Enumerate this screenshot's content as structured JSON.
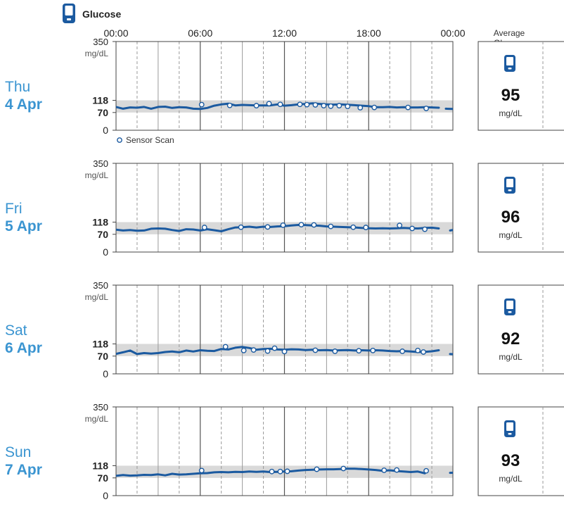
{
  "header": {
    "icon": "glucose-meter-icon",
    "title": "Glucose"
  },
  "colors": {
    "trace": "#1b5aa0",
    "target_band": "#d9d9d9",
    "day_label": "#3b95d1",
    "grid_solid": "#555555",
    "grid_dashed": "#999999",
    "icon": "#1b5aa0"
  },
  "time_axis": [
    "00:00",
    "06:00",
    "12:00",
    "18:00",
    "00:00"
  ],
  "legend": {
    "marker": "Sensor Scan"
  },
  "summary_header": [
    "Average",
    "Glucose"
  ],
  "chart_data": {
    "type": "line",
    "title": "Glucose",
    "unit": "mg/dL",
    "ylim": [
      0,
      350
    ],
    "yticks": [
      0,
      70,
      118,
      350
    ],
    "target_range": [
      70,
      118
    ],
    "xlim_hours": [
      0,
      24
    ],
    "grid": true,
    "days": [
      {
        "day": "Thu",
        "date": "4 Apr",
        "average": "95",
        "avg_unit": "mg/dL",
        "series": [
          [
            [
              0,
              92
            ],
            [
              0.5,
              85
            ],
            [
              1,
              90
            ],
            [
              1.5,
              89
            ],
            [
              2,
              92
            ],
            [
              2.5,
              85
            ],
            [
              3,
              92
            ],
            [
              3.5,
              93
            ],
            [
              4,
              88
            ],
            [
              4.5,
              91
            ],
            [
              5,
              90
            ],
            [
              5.5,
              85
            ],
            [
              6,
              84
            ],
            [
              6.5,
              88
            ],
            [
              7,
              97
            ],
            [
              7.5,
              102
            ],
            [
              8,
              105
            ],
            [
              8.5,
              98
            ],
            [
              9,
              100
            ],
            [
              9.5,
              99
            ],
            [
              10,
              98
            ],
            [
              11,
              98
            ],
            [
              11.5,
              102
            ],
            [
              12,
              97
            ],
            [
              12.5,
              99
            ],
            [
              13,
              102
            ],
            [
              13.5,
              104
            ],
            [
              14,
              106
            ],
            [
              14.5,
              104
            ],
            [
              15,
              102
            ],
            [
              15.5,
              101
            ],
            [
              16,
              102
            ],
            [
              17,
              99
            ],
            [
              17.5,
              97
            ],
            [
              18,
              95
            ],
            [
              18.5,
              91
            ],
            [
              19,
              91
            ],
            [
              19.5,
              92
            ],
            [
              20,
              90
            ],
            [
              20.5,
              91
            ],
            [
              21,
              90
            ],
            [
              21.5,
              90
            ],
            [
              22,
              91
            ],
            [
              22.5,
              90
            ],
            [
              23,
              89
            ]
          ],
          [
            [
              23.5,
              85
            ],
            [
              24,
              84
            ],
            [
              24.5,
              87
            ],
            [
              25,
              83
            ],
            [
              25.5,
              88
            ]
          ]
        ],
        "scans": [
          [
            6.1,
            101
          ],
          [
            8.1,
            98
          ],
          [
            10,
            97
          ],
          [
            10.9,
            105
          ],
          [
            11.7,
            102
          ],
          [
            13.1,
            102
          ],
          [
            13.6,
            101
          ],
          [
            14.2,
            100
          ],
          [
            14.8,
            97
          ],
          [
            15.3,
            95
          ],
          [
            15.9,
            97
          ],
          [
            16.5,
            94
          ],
          [
            17.4,
            89
          ],
          [
            18.4,
            90
          ],
          [
            20.8,
            90
          ],
          [
            22.1,
            86
          ]
        ]
      },
      {
        "day": "Fri",
        "date": "5 Apr",
        "average": "96",
        "avg_unit": "mg/dL",
        "series": [
          [
            [
              0,
              88
            ],
            [
              0.5,
              85
            ],
            [
              1,
              87
            ],
            [
              1.5,
              84
            ],
            [
              2,
              85
            ],
            [
              2.5,
              92
            ],
            [
              3,
              93
            ],
            [
              3.5,
              92
            ],
            [
              4,
              87
            ],
            [
              4.5,
              83
            ],
            [
              5,
              90
            ],
            [
              5.5,
              89
            ],
            [
              6,
              85
            ],
            [
              6.5,
              90
            ],
            [
              7,
              86
            ],
            [
              7.5,
              82
            ],
            [
              8,
              90
            ],
            [
              8.5,
              97
            ],
            [
              9,
              98
            ],
            [
              9.5,
              100
            ],
            [
              10,
              97
            ],
            [
              10.5,
              100
            ],
            [
              11,
              99
            ],
            [
              11.5,
              101
            ],
            [
              12,
              102
            ],
            [
              12.5,
              105
            ],
            [
              13,
              107
            ],
            [
              13.5,
              106
            ],
            [
              14,
              105
            ],
            [
              14.5,
              104
            ],
            [
              15,
              101
            ],
            [
              15.5,
              100
            ],
            [
              16,
              99
            ],
            [
              16.5,
              98
            ],
            [
              17,
              97
            ],
            [
              17.5,
              95
            ],
            [
              18,
              94
            ],
            [
              18.5,
              93
            ],
            [
              19,
              94
            ],
            [
              19.5,
              93
            ],
            [
              20,
              94
            ],
            [
              20.5,
              95
            ],
            [
              21,
              94
            ],
            [
              21.5,
              93
            ],
            [
              22,
              95
            ],
            [
              22.5,
              96
            ],
            [
              23,
              93
            ]
          ],
          [
            [
              23.8,
              85
            ],
            [
              24.3,
              90
            ],
            [
              24.8,
              88
            ],
            [
              25.3,
              82
            ]
          ]
        ],
        "scans": [
          [
            6.3,
            97
          ],
          [
            8.9,
            98
          ],
          [
            10.8,
            99
          ],
          [
            11.9,
            106
          ],
          [
            13.2,
            108
          ],
          [
            14.1,
            107
          ],
          [
            15.3,
            101
          ],
          [
            16.9,
            98
          ],
          [
            17.8,
            97
          ],
          [
            20.2,
            105
          ],
          [
            21.1,
            93
          ],
          [
            22,
            90
          ]
        ]
      },
      {
        "day": "Sat",
        "date": "6 Apr",
        "average": "92",
        "avg_unit": "mg/dL",
        "series": [
          [
            [
              0,
              79
            ],
            [
              0.5,
              85
            ],
            [
              1,
              92
            ],
            [
              1.5,
              78
            ],
            [
              2,
              82
            ],
            [
              2.5,
              80
            ],
            [
              3,
              82
            ],
            [
              3.5,
              86
            ],
            [
              4,
              88
            ],
            [
              4.5,
              85
            ],
            [
              5,
              92
            ],
            [
              5.5,
              88
            ],
            [
              6,
              93
            ],
            [
              6.5,
              91
            ],
            [
              7,
              90
            ],
            [
              7.5,
              98
            ],
            [
              8,
              96
            ],
            [
              8.5,
              103
            ],
            [
              9,
              106
            ],
            [
              9.5,
              102
            ],
            [
              10,
              95
            ],
            [
              10.5,
              98
            ],
            [
              11,
              99
            ],
            [
              11.5,
              96
            ],
            [
              12,
              95
            ],
            [
              12.5,
              97
            ],
            [
              13,
              96
            ],
            [
              13.5,
              94
            ],
            [
              14,
              95
            ],
            [
              14.5,
              93
            ],
            [
              15,
              94
            ],
            [
              15.5,
              92
            ],
            [
              16,
              93
            ],
            [
              16.5,
              94
            ],
            [
              17,
              92
            ],
            [
              17.5,
              93
            ],
            [
              18,
              92
            ],
            [
              18.5,
              93
            ],
            [
              19,
              92
            ],
            [
              19.5,
              90
            ],
            [
              20,
              89
            ],
            [
              20.5,
              90
            ],
            [
              21,
              88
            ],
            [
              21.5,
              86
            ],
            [
              22,
              87
            ],
            [
              22.5,
              89
            ],
            [
              23,
              93
            ]
          ],
          [
            [
              23.8,
              78
            ],
            [
              24.3,
              76
            ],
            [
              24.8,
              85
            ],
            [
              25.3,
              80
            ]
          ]
        ],
        "scans": [
          [
            7.8,
            107
          ],
          [
            9.1,
            92
          ],
          [
            9.8,
            94
          ],
          [
            10.8,
            90
          ],
          [
            11.3,
            101
          ],
          [
            12,
            88
          ],
          [
            14.2,
            93
          ],
          [
            15.6,
            89
          ],
          [
            17.3,
            91
          ],
          [
            18.3,
            92
          ],
          [
            20.4,
            89
          ],
          [
            21.5,
            92
          ],
          [
            21.9,
            86
          ]
        ]
      },
      {
        "day": "Sun",
        "date": "7 Apr",
        "average": "93",
        "avg_unit": "mg/dL",
        "series": [
          [
            [
              0,
              78
            ],
            [
              0.5,
              81
            ],
            [
              1,
              79
            ],
            [
              1.5,
              80
            ],
            [
              2,
              82
            ],
            [
              2.5,
              81
            ],
            [
              3,
              84
            ],
            [
              3.5,
              80
            ],
            [
              4,
              86
            ],
            [
              4.5,
              83
            ],
            [
              5,
              84
            ],
            [
              5.5,
              86
            ],
            [
              6,
              88
            ],
            [
              6.5,
              89
            ],
            [
              7,
              92
            ],
            [
              7.5,
              93
            ],
            [
              8,
              92
            ],
            [
              8.5,
              94
            ],
            [
              9,
              93
            ],
            [
              9.5,
              95
            ],
            [
              10,
              94
            ],
            [
              10.5,
              95
            ],
            [
              11,
              93
            ],
            [
              11.5,
              94
            ],
            [
              12,
              95
            ],
            [
              12.5,
              96
            ],
            [
              13,
              99
            ],
            [
              13.5,
              101
            ],
            [
              14,
              102
            ],
            [
              14.5,
              103
            ],
            [
              15,
              104
            ],
            [
              15.5,
              104
            ],
            [
              16,
              105
            ],
            [
              16.5,
              106
            ],
            [
              17,
              106
            ],
            [
              17.5,
              105
            ],
            [
              18,
              103
            ],
            [
              18.5,
              101
            ],
            [
              19,
              98
            ],
            [
              19.5,
              100
            ],
            [
              20,
              97
            ],
            [
              20.5,
              95
            ],
            [
              21,
              93
            ],
            [
              21.5,
              95
            ],
            [
              22,
              88
            ]
          ],
          [
            [
              23.8,
              90
            ],
            [
              24.3,
              91
            ],
            [
              24.8,
              88
            ],
            [
              25.3,
              86
            ]
          ]
        ],
        "scans": [
          [
            6.1,
            99
          ],
          [
            11.1,
            95
          ],
          [
            11.7,
            95
          ],
          [
            12.2,
            96
          ],
          [
            14.3,
            104
          ],
          [
            16.2,
            107
          ],
          [
            19.1,
            100
          ],
          [
            20,
            101
          ],
          [
            22.1,
            98
          ]
        ]
      }
    ]
  }
}
